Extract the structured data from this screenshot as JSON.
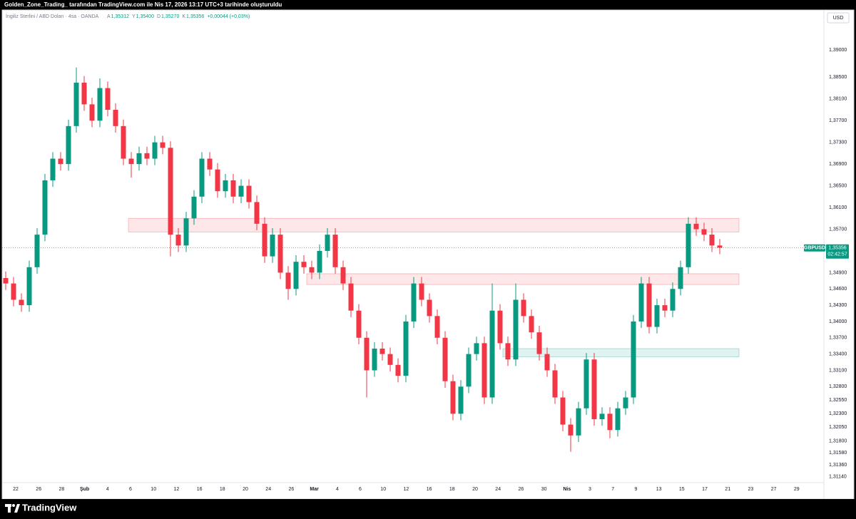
{
  "header": {
    "title": "Golden_Zone_Trading_ tarafından TradingView.com ile Nis 17, 2026 13:17 UTC+3 tarihinde oluşturuldu"
  },
  "chart_data": {
    "type": "candlestick",
    "symbol_info": "İngiliz Sterlini / ABD Doları · 4sa · OANDA",
    "ohlc_summary": [
      {
        "key": "A",
        "value": "1,35312"
      },
      {
        "key": "Y",
        "value": "1,35400"
      },
      {
        "key": "D",
        "value": "1,35270"
      },
      {
        "key": "K",
        "value": "1,35356"
      }
    ],
    "change": "+0,00044 (+0,03%)",
    "currency": "USD",
    "symbol": "GBPUSD",
    "last_price": {
      "value": 1.35356,
      "label": "1,35356"
    },
    "countdown": "02:42:57",
    "up_color": "#089981",
    "down_color": "#f23645",
    "grid": false,
    "ylim": [
      1.3086,
      1.3966
    ],
    "yticks": [
      {
        "value": 1.39,
        "label": "1,39000"
      },
      {
        "value": 1.385,
        "label": "1,38500"
      },
      {
        "value": 1.381,
        "label": "1,38100"
      },
      {
        "value": 1.377,
        "label": "1,37700"
      },
      {
        "value": 1.373,
        "label": "1,37300"
      },
      {
        "value": 1.369,
        "label": "1,36900"
      },
      {
        "value": 1.365,
        "label": "1,36500"
      },
      {
        "value": 1.361,
        "label": "1,36100"
      },
      {
        "value": 1.357,
        "label": "1,35700"
      },
      {
        "value": 1.349,
        "label": "1,34900"
      },
      {
        "value": 1.346,
        "label": "1,34600"
      },
      {
        "value": 1.343,
        "label": "1,34300"
      },
      {
        "value": 1.34,
        "label": "1,34000"
      },
      {
        "value": 1.337,
        "label": "1,33700"
      },
      {
        "value": 1.334,
        "label": "1,33400"
      },
      {
        "value": 1.331,
        "label": "1,33100"
      },
      {
        "value": 1.328,
        "label": "1,32800"
      },
      {
        "value": 1.3255,
        "label": "1,32550"
      },
      {
        "value": 1.323,
        "label": "1,32300"
      },
      {
        "value": 1.3205,
        "label": "1,32050"
      },
      {
        "value": 1.318,
        "label": "1,31800"
      },
      {
        "value": 1.3158,
        "label": "1,31580"
      },
      {
        "value": 1.3136,
        "label": "1,31360"
      },
      {
        "value": 1.3114,
        "label": "1,31140"
      }
    ],
    "categories": [
      "22",
      "26",
      "28",
      "Şub",
      "4",
      "6",
      "10",
      "12",
      "16",
      "18",
      "20",
      "24",
      "26",
      "Mar",
      "4",
      "6",
      "10",
      "12",
      "16",
      "18",
      "20",
      "24",
      "26",
      "30",
      "Nis",
      "3",
      "7",
      "9",
      "13",
      "15",
      "17",
      "21",
      "23",
      "27",
      "29"
    ],
    "zones": [
      {
        "low": 1.3565,
        "high": 1.359,
        "color": "#f23645"
      },
      {
        "low": 1.3468,
        "high": 1.3488,
        "color": "#f23645"
      },
      {
        "low": 1.3335,
        "high": 1.335,
        "color": "#089981"
      }
    ],
    "candles": [
      [
        1.348,
        1.3492,
        1.3458,
        1.347
      ],
      [
        1.347,
        1.3482,
        1.3428,
        1.344
      ],
      [
        1.344,
        1.3452,
        1.3418,
        1.343
      ],
      [
        1.343,
        1.3512,
        1.3418,
        1.35
      ],
      [
        1.35,
        1.3572,
        1.3488,
        1.356
      ],
      [
        1.356,
        1.3672,
        1.3548,
        1.366
      ],
      [
        1.366,
        1.3712,
        1.3648,
        1.37
      ],
      [
        1.37,
        1.3712,
        1.3678,
        1.369
      ],
      [
        1.369,
        1.3772,
        1.3678,
        1.376
      ],
      [
        1.376,
        1.3868,
        1.3748,
        1.384
      ],
      [
        1.384,
        1.3852,
        1.3788,
        1.38
      ],
      [
        1.38,
        1.3812,
        1.3758,
        1.377
      ],
      [
        1.377,
        1.3848,
        1.3758,
        1.383
      ],
      [
        1.383,
        1.3842,
        1.3778,
        1.379
      ],
      [
        1.379,
        1.3802,
        1.3748,
        1.376
      ],
      [
        1.376,
        1.3772,
        1.3688,
        1.37
      ],
      [
        1.37,
        1.3712,
        1.3665,
        1.369
      ],
      [
        1.369,
        1.3722,
        1.3678,
        1.371
      ],
      [
        1.371,
        1.3722,
        1.3688,
        1.37
      ],
      [
        1.37,
        1.3742,
        1.3688,
        1.373
      ],
      [
        1.373,
        1.3742,
        1.3708,
        1.372
      ],
      [
        1.372,
        1.3732,
        1.352,
        1.356
      ],
      [
        1.356,
        1.3572,
        1.3528,
        1.354
      ],
      [
        1.354,
        1.3602,
        1.3528,
        1.359
      ],
      [
        1.359,
        1.3642,
        1.3578,
        1.363
      ],
      [
        1.363,
        1.3712,
        1.3618,
        1.37
      ],
      [
        1.37,
        1.3712,
        1.3668,
        1.368
      ],
      [
        1.368,
        1.3692,
        1.3628,
        1.364
      ],
      [
        1.364,
        1.3672,
        1.3628,
        1.366
      ],
      [
        1.366,
        1.3672,
        1.3618,
        1.363
      ],
      [
        1.363,
        1.3662,
        1.3618,
        1.365
      ],
      [
        1.365,
        1.3662,
        1.3608,
        1.362
      ],
      [
        1.362,
        1.3632,
        1.3568,
        1.358
      ],
      [
        1.358,
        1.3592,
        1.3508,
        1.352
      ],
      [
        1.352,
        1.3572,
        1.3508,
        1.356
      ],
      [
        1.356,
        1.3572,
        1.3478,
        1.349
      ],
      [
        1.349,
        1.3502,
        1.344,
        1.346
      ],
      [
        1.346,
        1.3522,
        1.3448,
        1.351
      ],
      [
        1.351,
        1.3522,
        1.3488,
        1.35
      ],
      [
        1.35,
        1.3512,
        1.3478,
        1.349
      ],
      [
        1.349,
        1.3542,
        1.3478,
        1.353
      ],
      [
        1.353,
        1.3572,
        1.3518,
        1.356
      ],
      [
        1.356,
        1.3572,
        1.3488,
        1.35
      ],
      [
        1.35,
        1.3512,
        1.3458,
        1.347
      ],
      [
        1.347,
        1.3482,
        1.3408,
        1.342
      ],
      [
        1.342,
        1.3432,
        1.3358,
        1.337
      ],
      [
        1.337,
        1.3382,
        1.326,
        1.331
      ],
      [
        1.331,
        1.3362,
        1.3298,
        1.335
      ],
      [
        1.335,
        1.3362,
        1.3328,
        1.334
      ],
      [
        1.334,
        1.3352,
        1.3308,
        1.332
      ],
      [
        1.332,
        1.3332,
        1.3288,
        1.33
      ],
      [
        1.33,
        1.3412,
        1.3288,
        1.34
      ],
      [
        1.34,
        1.3482,
        1.3388,
        1.347
      ],
      [
        1.347,
        1.3482,
        1.3428,
        1.344
      ],
      [
        1.344,
        1.3452,
        1.3398,
        1.341
      ],
      [
        1.341,
        1.3422,
        1.3358,
        1.337
      ],
      [
        1.337,
        1.3382,
        1.3278,
        1.329
      ],
      [
        1.329,
        1.3302,
        1.3218,
        1.323
      ],
      [
        1.323,
        1.3292,
        1.3218,
        1.328
      ],
      [
        1.328,
        1.3352,
        1.3268,
        1.334
      ],
      [
        1.334,
        1.3372,
        1.3328,
        1.336
      ],
      [
        1.336,
        1.3372,
        1.3248,
        1.326
      ],
      [
        1.326,
        1.347,
        1.3248,
        1.342
      ],
      [
        1.342,
        1.3432,
        1.3348,
        1.336
      ],
      [
        1.336,
        1.3372,
        1.3318,
        1.333
      ],
      [
        1.333,
        1.347,
        1.3318,
        1.344
      ],
      [
        1.344,
        1.3452,
        1.3398,
        1.341
      ],
      [
        1.341,
        1.3422,
        1.3368,
        1.338
      ],
      [
        1.338,
        1.3392,
        1.3328,
        1.334
      ],
      [
        1.334,
        1.3352,
        1.3298,
        1.331
      ],
      [
        1.331,
        1.3322,
        1.3248,
        1.326
      ],
      [
        1.326,
        1.3272,
        1.3198,
        1.321
      ],
      [
        1.321,
        1.3222,
        1.316,
        1.319
      ],
      [
        1.319,
        1.3252,
        1.3178,
        1.324
      ],
      [
        1.324,
        1.3342,
        1.3228,
        1.333
      ],
      [
        1.333,
        1.3342,
        1.3208,
        1.322
      ],
      [
        1.322,
        1.3242,
        1.3208,
        1.323
      ],
      [
        1.323,
        1.3242,
        1.3185,
        1.32
      ],
      [
        1.32,
        1.3252,
        1.3188,
        1.324
      ],
      [
        1.324,
        1.3272,
        1.3228,
        1.326
      ],
      [
        1.326,
        1.3412,
        1.3248,
        1.34
      ],
      [
        1.34,
        1.3482,
        1.3388,
        1.347
      ],
      [
        1.347,
        1.3482,
        1.3378,
        1.339
      ],
      [
        1.339,
        1.3442,
        1.3378,
        1.343
      ],
      [
        1.343,
        1.3442,
        1.3408,
        1.342
      ],
      [
        1.342,
        1.3472,
        1.3408,
        1.346
      ],
      [
        1.346,
        1.3512,
        1.3448,
        1.35
      ],
      [
        1.35,
        1.3592,
        1.3488,
        1.358
      ],
      [
        1.358,
        1.3592,
        1.3558,
        1.357
      ],
      [
        1.357,
        1.3582,
        1.3548,
        1.356
      ],
      [
        1.356,
        1.3572,
        1.3528,
        1.354
      ],
      [
        1.354,
        1.3552,
        1.3524,
        1.3536
      ]
    ]
  },
  "footer": {
    "brand": "TradingView"
  }
}
